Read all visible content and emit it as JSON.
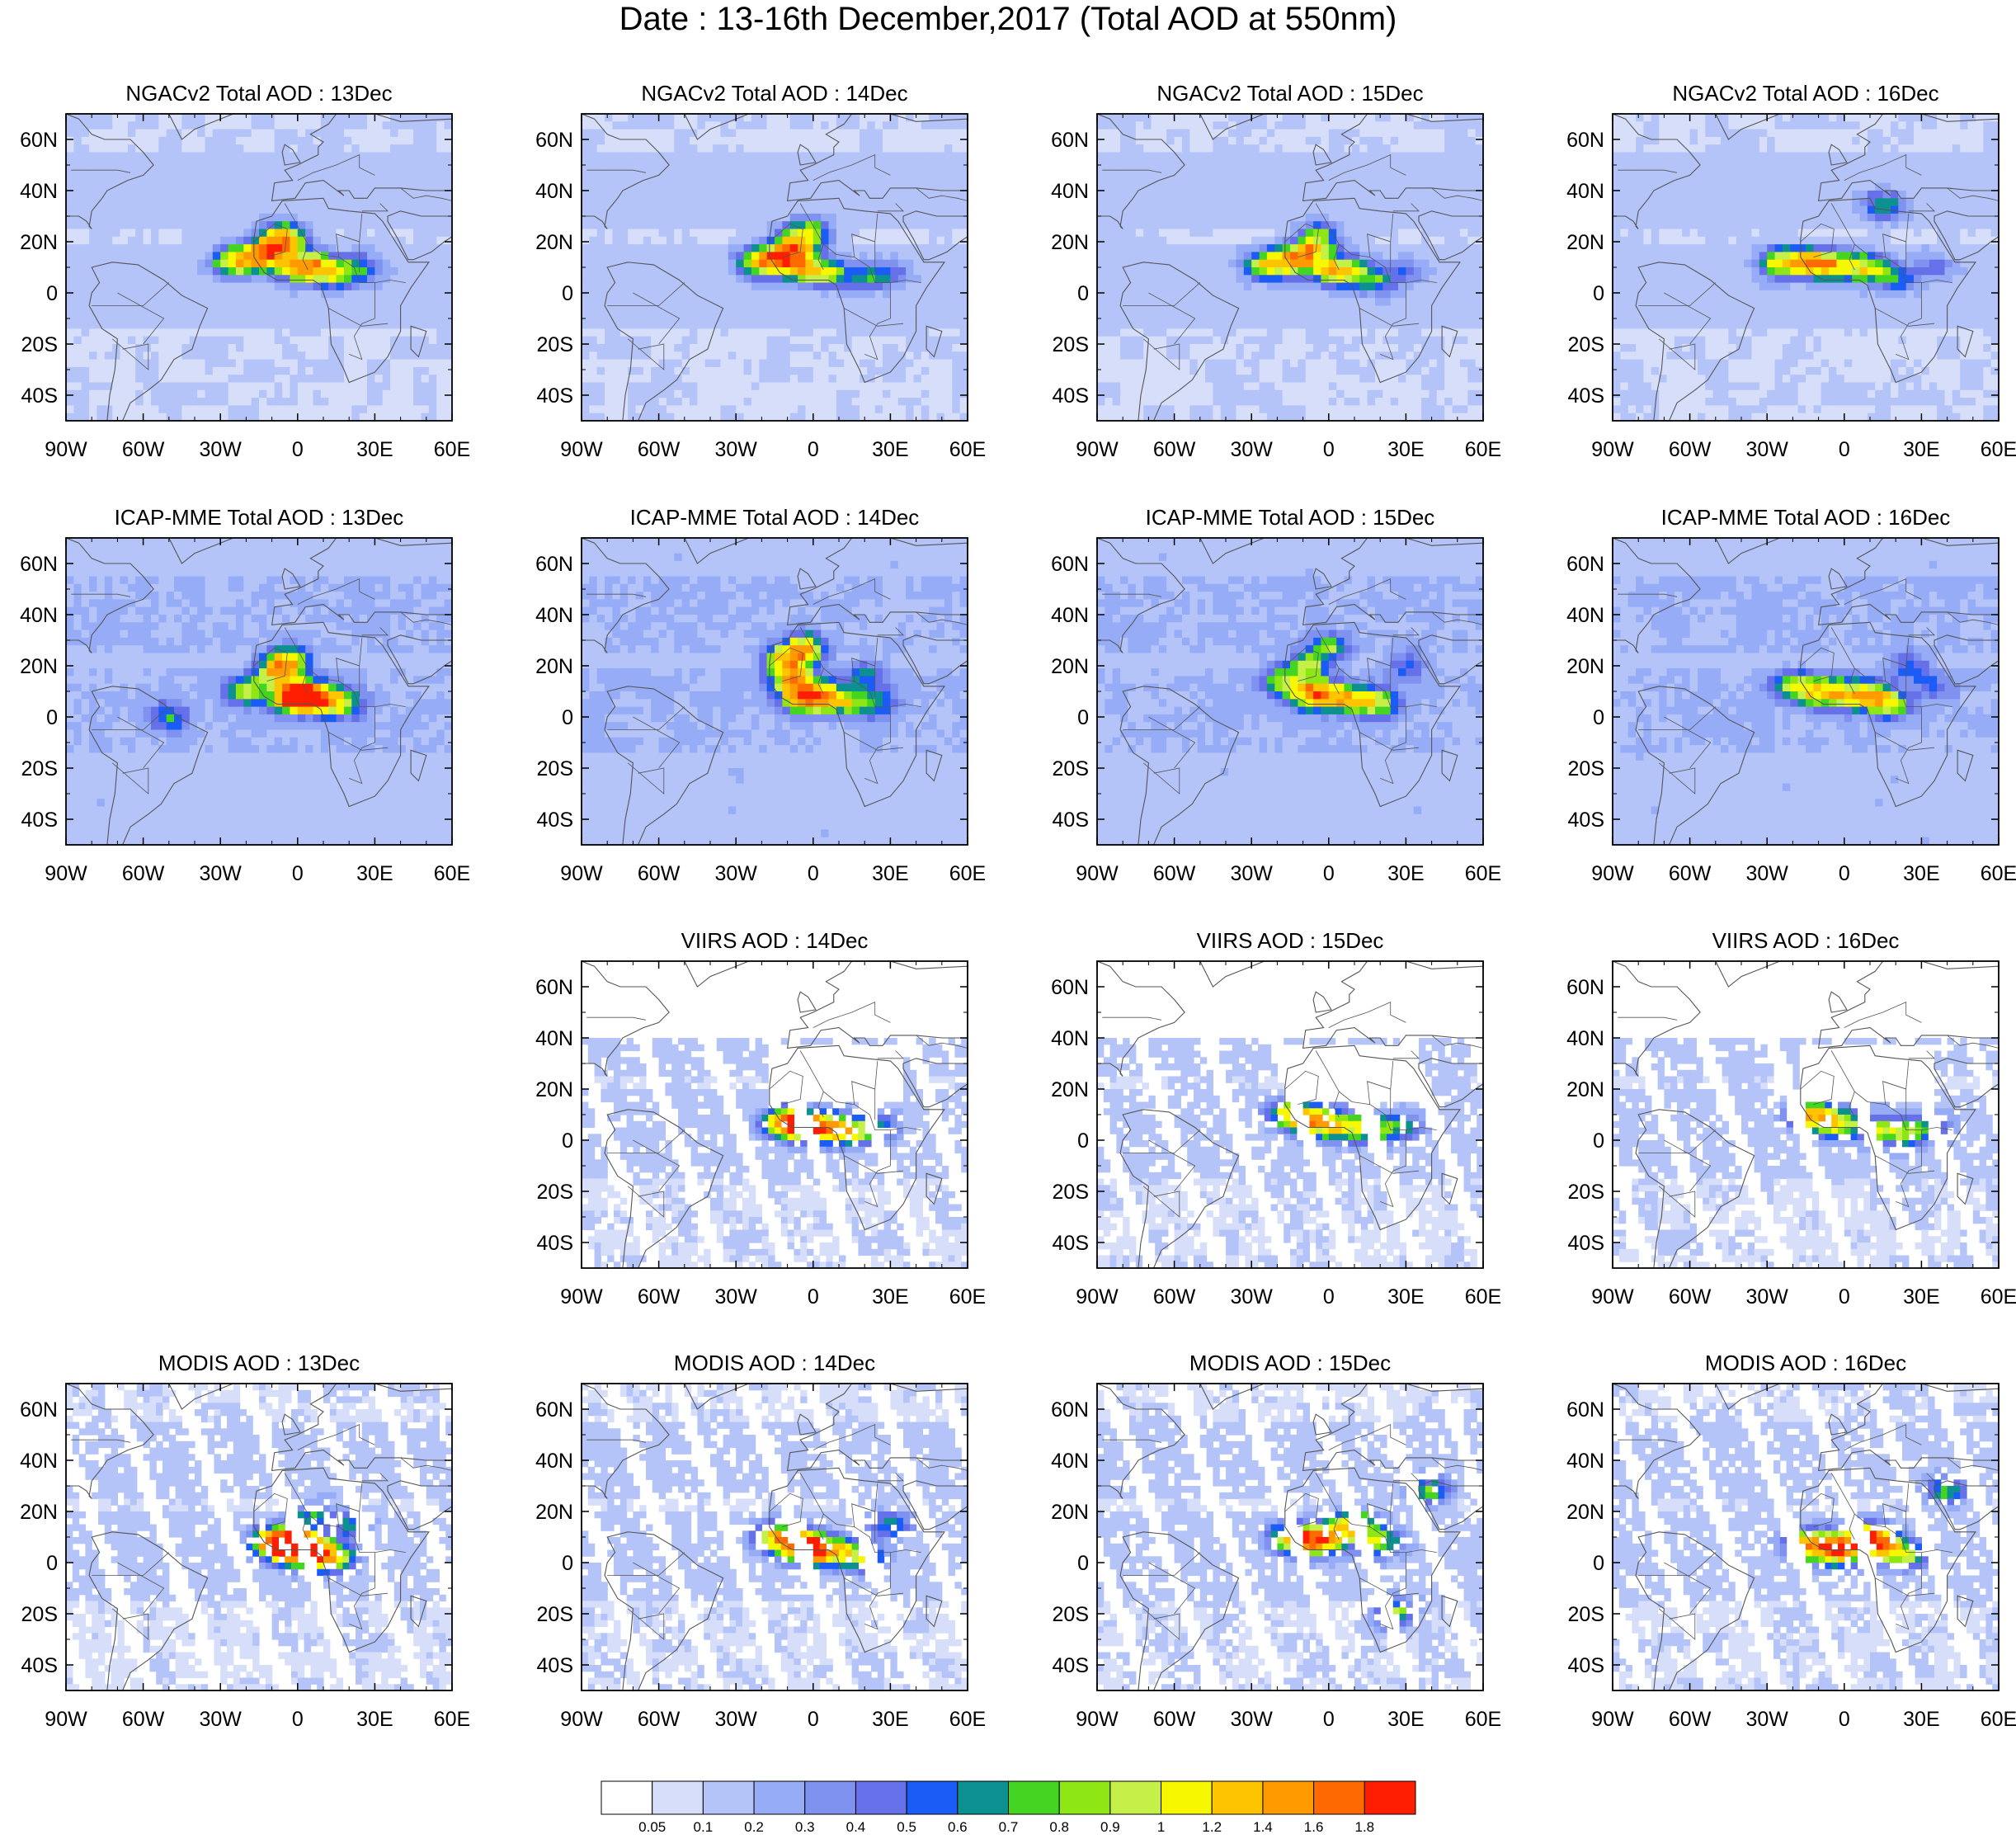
{
  "title": "Date : 13-16th December,2017 (Total AOD at 550nm)",
  "axes": {
    "lon_ticks": [
      "90W",
      "60W",
      "30W",
      "0",
      "30E",
      "60E"
    ],
    "lat_ticks": [
      "60N",
      "40N",
      "20N",
      "0",
      "20S",
      "40S"
    ],
    "lon_range": [
      -90,
      60
    ],
    "lat_range": [
      -50,
      70
    ]
  },
  "panels": [
    {
      "title": "NGACv2 Total AOD : 13Dec",
      "dataset": "NGACv2",
      "day": "13Dec",
      "row": 0,
      "col": 0,
      "style": "model",
      "plume": [
        [
          -25,
          12,
          1.0
        ],
        [
          -15,
          14,
          1.1
        ],
        [
          -8,
          18,
          1.2
        ],
        [
          -4,
          22,
          0.9
        ],
        [
          0,
          10,
          1.0
        ],
        [
          8,
          10,
          0.9
        ],
        [
          15,
          7,
          0.7
        ],
        [
          25,
          10,
          0.4
        ]
      ]
    },
    {
      "title": "NGACv2 Total AOD : 14Dec",
      "dataset": "NGACv2",
      "day": "14Dec",
      "row": 0,
      "col": 1,
      "style": "model",
      "plume": [
        [
          -22,
          12,
          0.8
        ],
        [
          -14,
          13,
          1.1
        ],
        [
          -8,
          18,
          1.0
        ],
        [
          -2,
          23,
          0.9
        ],
        [
          -5,
          10,
          1.0
        ],
        [
          5,
          8,
          0.8
        ],
        [
          20,
          6,
          0.5
        ],
        [
          30,
          8,
          0.3
        ]
      ]
    },
    {
      "title": "NGACv2 Total AOD : 15Dec",
      "dataset": "NGACv2",
      "day": "15Dec",
      "row": 0,
      "col": 2,
      "style": "model",
      "plume": [
        [
          -25,
          11,
          0.9
        ],
        [
          -15,
          12,
          1.0
        ],
        [
          -8,
          16,
          1.0
        ],
        [
          -3,
          22,
          0.7
        ],
        [
          0,
          9,
          0.8
        ],
        [
          8,
          8,
          0.8
        ],
        [
          18,
          5,
          0.5
        ],
        [
          30,
          8,
          0.3
        ]
      ]
    },
    {
      "title": "NGACv2 Total AOD : 16Dec",
      "dataset": "NGACv2",
      "day": "16Dec",
      "row": 0,
      "col": 3,
      "style": "model",
      "plume": [
        [
          -25,
          12,
          0.9
        ],
        [
          -15,
          12,
          0.9
        ],
        [
          -8,
          11,
          0.8
        ],
        [
          0,
          10,
          0.7
        ],
        [
          10,
          10,
          0.8
        ],
        [
          15,
          34,
          0.6
        ],
        [
          20,
          6,
          0.5
        ],
        [
          35,
          10,
          0.3
        ]
      ]
    },
    {
      "title": "ICAP-MME Total AOD : 13Dec",
      "dataset": "ICAP-MME",
      "day": "13Dec",
      "row": 1,
      "col": 0,
      "style": "model",
      "plume": [
        [
          -20,
          10,
          0.8
        ],
        [
          -8,
          18,
          1.0
        ],
        [
          -3,
          22,
          0.9
        ],
        [
          -2,
          8,
          1.4
        ],
        [
          3,
          8,
          1.6
        ],
        [
          10,
          7,
          0.9
        ],
        [
          18,
          5,
          0.6
        ],
        [
          -50,
          0,
          0.5
        ]
      ]
    },
    {
      "title": "ICAP-MME Total AOD : 14Dec",
      "dataset": "ICAP-MME",
      "day": "14Dec",
      "row": 1,
      "col": 1,
      "style": "model",
      "plume": [
        [
          -10,
          22,
          1.1
        ],
        [
          -3,
          27,
          1.0
        ],
        [
          -8,
          15,
          0.9
        ],
        [
          -5,
          8,
          1.2
        ],
        [
          3,
          8,
          1.1
        ],
        [
          12,
          6,
          0.7
        ],
        [
          20,
          16,
          0.5
        ],
        [
          25,
          5,
          0.5
        ]
      ]
    },
    {
      "title": "ICAP-MME Total AOD : 15Dec",
      "dataset": "ICAP-MME",
      "day": "15Dec",
      "row": 1,
      "col": 2,
      "style": "model",
      "plume": [
        [
          -18,
          14,
          0.7
        ],
        [
          -8,
          20,
          0.7
        ],
        [
          0,
          27,
          0.6
        ],
        [
          -8,
          9,
          1.0
        ],
        [
          0,
          8,
          1.0
        ],
        [
          10,
          7,
          0.9
        ],
        [
          20,
          5,
          0.7
        ],
        [
          30,
          20,
          0.4
        ]
      ]
    },
    {
      "title": "ICAP-MME Total AOD : 16Dec",
      "dataset": "ICAP-MME",
      "day": "16Dec",
      "row": 1,
      "col": 3,
      "style": "model",
      "plume": [
        [
          -20,
          12,
          0.7
        ],
        [
          -10,
          10,
          0.9
        ],
        [
          0,
          9,
          0.9
        ],
        [
          10,
          8,
          0.9
        ],
        [
          18,
          5,
          0.7
        ],
        [
          25,
          20,
          0.4
        ],
        [
          35,
          12,
          0.3
        ]
      ]
    },
    {
      "title": "VIIRS AOD : 14Dec",
      "dataset": "VIIRS",
      "day": "14Dec",
      "row": 2,
      "col": 1,
      "style": "sat",
      "plume": [
        [
          -12,
          7,
          1.0
        ],
        [
          -5,
          6,
          1.0
        ],
        [
          0,
          5,
          0.9
        ],
        [
          8,
          5,
          0.8
        ],
        [
          15,
          3,
          0.7
        ],
        [
          25,
          5,
          0.5
        ]
      ]
    },
    {
      "title": "VIIRS AOD : 15Dec",
      "dataset": "VIIRS",
      "day": "15Dec",
      "row": 2,
      "col": 2,
      "style": "sat",
      "plume": [
        [
          -15,
          10,
          0.9
        ],
        [
          -8,
          8,
          0.9
        ],
        [
          0,
          6,
          0.8
        ],
        [
          10,
          5,
          0.7
        ],
        [
          20,
          4,
          0.6
        ],
        [
          30,
          5,
          0.4
        ]
      ]
    },
    {
      "title": "VIIRS AOD : 16Dec",
      "dataset": "VIIRS",
      "day": "16Dec",
      "row": 2,
      "col": 3,
      "style": "sat",
      "plume": [
        [
          -15,
          10,
          0.8
        ],
        [
          -8,
          8,
          0.8
        ],
        [
          0,
          6,
          0.7
        ],
        [
          15,
          4,
          0.7
        ],
        [
          25,
          3,
          0.6
        ],
        [
          35,
          5,
          0.4
        ]
      ]
    },
    {
      "title": "MODIS AOD : 13Dec",
      "dataset": "MODIS",
      "day": "13Dec",
      "row": 3,
      "col": 0,
      "style": "sat",
      "plume": [
        [
          -10,
          8,
          1.2
        ],
        [
          -3,
          6,
          1.6
        ],
        [
          0,
          7,
          1.8
        ],
        [
          8,
          3,
          1.0
        ],
        [
          15,
          2,
          0.8
        ],
        [
          5,
          18,
          0.5
        ],
        [
          20,
          15,
          0.5
        ]
      ]
    },
    {
      "title": "MODIS AOD : 14Dec",
      "dataset": "MODIS",
      "day": "14Dec",
      "row": 3,
      "col": 1,
      "style": "sat",
      "plume": [
        [
          -15,
          10,
          1.0
        ],
        [
          -5,
          7,
          1.6
        ],
        [
          0,
          5,
          1.3
        ],
        [
          10,
          4,
          0.9
        ],
        [
          20,
          2,
          0.7
        ],
        [
          30,
          15,
          0.5
        ]
      ]
    },
    {
      "title": "MODIS AOD : 15Dec",
      "dataset": "MODIS",
      "day": "15Dec",
      "row": 3,
      "col": 2,
      "style": "sat",
      "plume": [
        [
          -15,
          10,
          1.0
        ],
        [
          -8,
          8,
          1.1
        ],
        [
          0,
          10,
          1.0
        ],
        [
          10,
          15,
          1.2
        ],
        [
          20,
          8,
          0.8
        ],
        [
          25,
          -20,
          0.9
        ],
        [
          40,
          28,
          0.6
        ]
      ]
    },
    {
      "title": "MODIS AOD : 16Dec",
      "dataset": "MODIS",
      "day": "16Dec",
      "row": 3,
      "col": 3,
      "style": "sat",
      "plume": [
        [
          -15,
          7,
          1.1
        ],
        [
          -5,
          6,
          1.2
        ],
        [
          0,
          5,
          1.0
        ],
        [
          10,
          10,
          1.3
        ],
        [
          15,
          6,
          1.0
        ],
        [
          25,
          3,
          0.7
        ],
        [
          40,
          28,
          0.6
        ]
      ]
    }
  ],
  "colorbar": {
    "levels": [
      "0.05",
      "0.1",
      "0.2",
      "0.3",
      "0.4",
      "0.5",
      "0.6",
      "0.7",
      "0.8",
      "0.9",
      "1",
      "1.2",
      "1.4",
      "1.6",
      "1.8"
    ],
    "thresholds": [
      0.05,
      0.1,
      0.2,
      0.3,
      0.4,
      0.5,
      0.6,
      0.7,
      0.8,
      0.9,
      1.0,
      1.2,
      1.4,
      1.6,
      1.8
    ],
    "colors": [
      "#ffffff",
      "#d7defa",
      "#b4c3f8",
      "#96acf7",
      "#7f92f0",
      "#6670e8",
      "#1a5cf5",
      "#0d9090",
      "#44d522",
      "#8ee615",
      "#c5f048",
      "#f7f700",
      "#ffc400",
      "#ff9a00",
      "#ff6a00",
      "#ff1e00"
    ]
  }
}
